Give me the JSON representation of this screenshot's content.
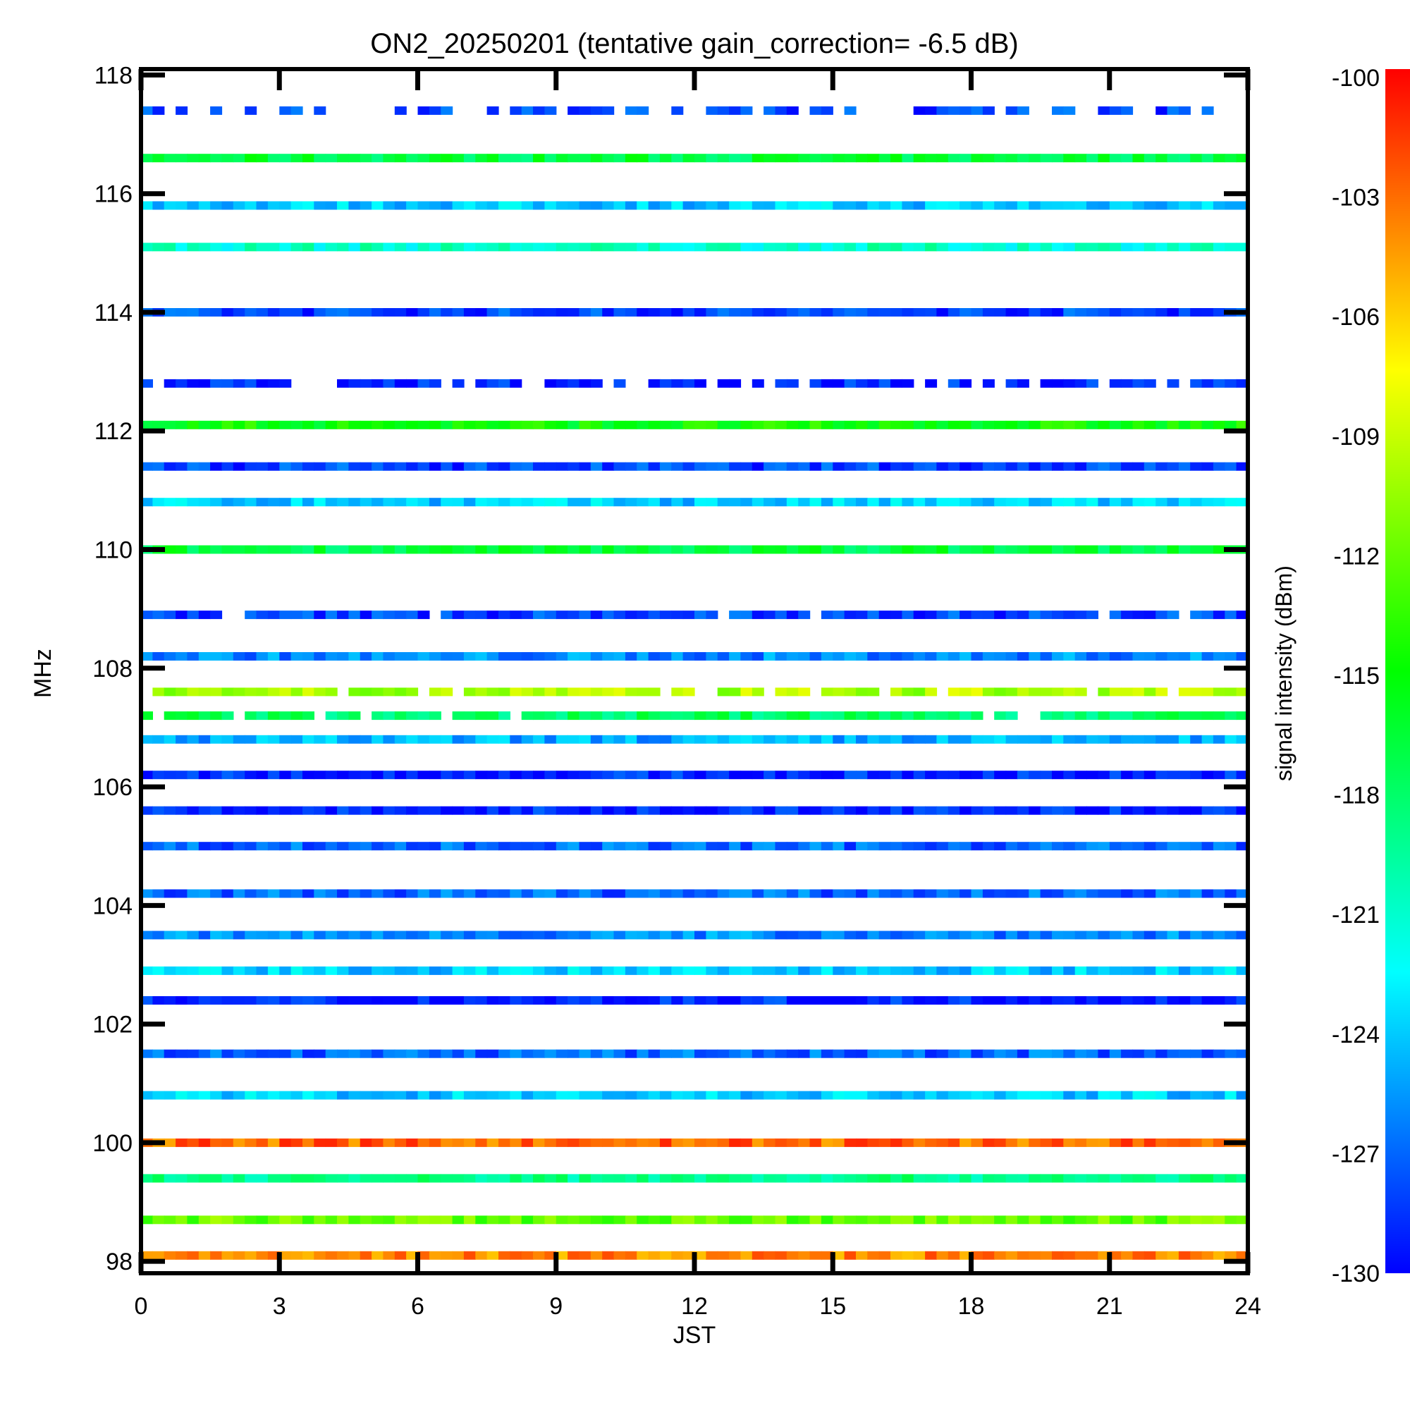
{
  "chart_data": {
    "type": "heatmap",
    "title": "ON2_20250201 (tentative gain_correction= -6.5 dB)",
    "xlabel": "JST",
    "ylabel": "MHz",
    "xlim": [
      0,
      24
    ],
    "ylim": [
      97.8,
      118.1
    ],
    "x_ticks": [
      "0",
      "3",
      "6",
      "9",
      "12",
      "15",
      "18",
      "21",
      "24"
    ],
    "y_ticks": [
      "98",
      "100",
      "102",
      "104",
      "106",
      "108",
      "110",
      "112",
      "114",
      "116",
      "118"
    ],
    "colorbar": {
      "label": "signal intensity (dBm)",
      "range": [
        -130,
        -100
      ],
      "ticks": [
        "-100",
        "-103",
        "-106",
        "-109",
        "-112",
        "-115",
        "-118",
        "-121",
        "-124",
        "-127",
        "-130"
      ],
      "colors": [
        "#0000ff",
        "#0080ff",
        "#00ffff",
        "#00ff80",
        "#00ff00",
        "#80ff00",
        "#ffff00",
        "#ff8000",
        "#ff0000"
      ]
    },
    "bands": [
      {
        "mhz": 117.4,
        "dbm": -128,
        "density": 0.55
      },
      {
        "mhz": 116.6,
        "dbm": -117,
        "density": 1.0
      },
      {
        "mhz": 115.8,
        "dbm": -124,
        "density": 1.0
      },
      {
        "mhz": 115.1,
        "dbm": -121,
        "density": 1.0
      },
      {
        "mhz": 114.0,
        "dbm": -128,
        "density": 1.0
      },
      {
        "mhz": 112.8,
        "dbm": -129,
        "density": 0.8
      },
      {
        "mhz": 112.1,
        "dbm": -115,
        "density": 1.0
      },
      {
        "mhz": 111.4,
        "dbm": -128,
        "density": 1.0
      },
      {
        "mhz": 110.8,
        "dbm": -124,
        "density": 1.0
      },
      {
        "mhz": 110.0,
        "dbm": -117,
        "density": 1.0
      },
      {
        "mhz": 108.9,
        "dbm": -128,
        "density": 0.9
      },
      {
        "mhz": 108.2,
        "dbm": -126,
        "density": 1.0
      },
      {
        "mhz": 107.6,
        "dbm": -110,
        "density": 0.9
      },
      {
        "mhz": 107.2,
        "dbm": -118,
        "density": 0.8
      },
      {
        "mhz": 106.8,
        "dbm": -125,
        "density": 1.0
      },
      {
        "mhz": 106.2,
        "dbm": -129,
        "density": 1.0
      },
      {
        "mhz": 105.6,
        "dbm": -129,
        "density": 1.0
      },
      {
        "mhz": 105.0,
        "dbm": -127,
        "density": 1.0
      },
      {
        "mhz": 104.2,
        "dbm": -127,
        "density": 1.0
      },
      {
        "mhz": 103.5,
        "dbm": -126,
        "density": 1.0
      },
      {
        "mhz": 102.9,
        "dbm": -124,
        "density": 1.0
      },
      {
        "mhz": 102.4,
        "dbm": -129,
        "density": 1.0
      },
      {
        "mhz": 101.5,
        "dbm": -127,
        "density": 1.0
      },
      {
        "mhz": 100.8,
        "dbm": -124,
        "density": 1.0
      },
      {
        "mhz": 100.0,
        "dbm": -103,
        "density": 1.0
      },
      {
        "mhz": 99.4,
        "dbm": -119,
        "density": 1.0
      },
      {
        "mhz": 98.7,
        "dbm": -112,
        "density": 1.0
      },
      {
        "mhz": 98.1,
        "dbm": -104,
        "density": 1.0
      }
    ]
  }
}
